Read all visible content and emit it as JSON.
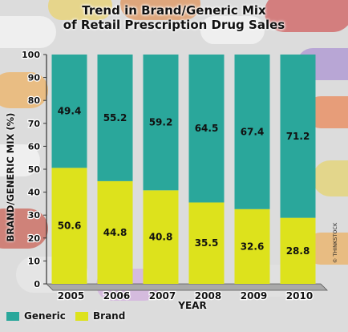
{
  "chart_data": {
    "type": "bar",
    "stacked": true,
    "title": "Trend in Brand/Generic Mix",
    "subtitle": "of Retail Prescription Drug Sales",
    "xlabel": "YEAR",
    "ylabel": "BRAND/GENERIC MIX (%)",
    "categories": [
      "2005",
      "2006",
      "2007",
      "2008",
      "2009",
      "2010"
    ],
    "series": [
      {
        "name": "Brand",
        "values": [
          50.6,
          44.8,
          40.8,
          35.5,
          32.6,
          28.8
        ],
        "color": "#dde21c"
      },
      {
        "name": "Generic",
        "values": [
          49.4,
          55.2,
          59.2,
          64.5,
          67.4,
          71.2
        ],
        "color": "#2aa79b"
      }
    ],
    "ylim": [
      0,
      100
    ],
    "yticks": [
      "0",
      "10",
      "20",
      "30",
      "40",
      "50",
      "60",
      "70",
      "80",
      "90",
      "100"
    ],
    "grid": false,
    "legend": {
      "position": "bottom-left",
      "entries": [
        "Generic",
        "Brand"
      ]
    }
  },
  "credit": "© THINKSTOCK",
  "colors": {
    "generic": "#2aa79b",
    "brand": "#dde21c"
  }
}
